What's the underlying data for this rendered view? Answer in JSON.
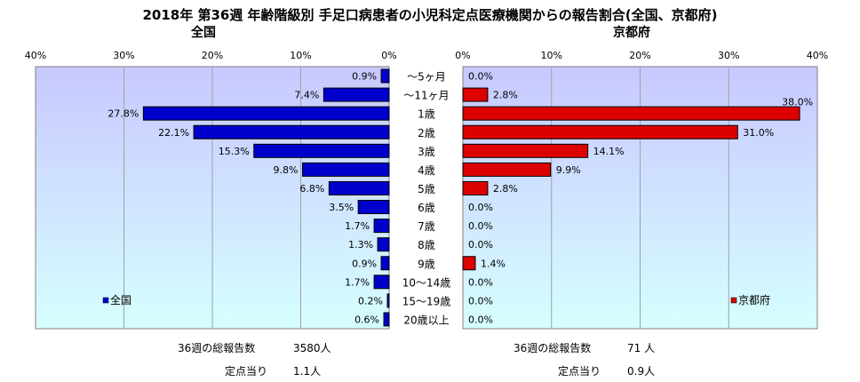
{
  "title": "2018年 第36週 年齢階級別 手足口病患者の小児科定点医療機関からの報告割合(全国、京都府)",
  "chart_data": [
    {
      "type": "bar",
      "title": "全国",
      "orientation": "horizontal-reversed",
      "categories": [
        "〜5ヶ月",
        "〜11ヶ月",
        "1歳",
        "2歳",
        "3歳",
        "4歳",
        "5歳",
        "6歳",
        "7歳",
        "8歳",
        "9歳",
        "10〜14歳",
        "15〜19歳",
        "20歳以上"
      ],
      "series": [
        {
          "name": "全国",
          "values": [
            0.9,
            7.4,
            27.8,
            22.1,
            15.3,
            9.8,
            6.8,
            3.5,
            1.7,
            1.3,
            0.9,
            1.7,
            0.2,
            0.6
          ],
          "color": "#0000cc"
        }
      ],
      "data_labels": [
        "0.9%",
        "7.4%",
        "27.8%",
        "22.1%",
        "15.3%",
        "9.8%",
        "6.8%",
        "3.5%",
        "1.7%",
        "1.3%",
        "0.9%",
        "1.7%",
        "0.2%",
        "0.6%"
      ],
      "xlim": [
        0,
        40
      ],
      "tick_labels": [
        "40%",
        "30%",
        "20%",
        "10%",
        "0%"
      ],
      "legend": "bottom-left",
      "background": "gradient light blue to light cyan",
      "grid": true
    },
    {
      "type": "bar",
      "title": "京都府",
      "orientation": "horizontal",
      "categories": [
        "〜5ヶ月",
        "〜11ヶ月",
        "1歳",
        "2歳",
        "3歳",
        "4歳",
        "5歳",
        "6歳",
        "7歳",
        "8歳",
        "9歳",
        "10〜14歳",
        "15〜19歳",
        "20歳以上"
      ],
      "series": [
        {
          "name": "京都府",
          "values": [
            0.0,
            2.8,
            38.0,
            31.0,
            14.1,
            9.9,
            2.8,
            0.0,
            0.0,
            0.0,
            1.4,
            0.0,
            0.0,
            0.0
          ],
          "color": "#dd0000"
        }
      ],
      "data_labels": [
        "0.0%",
        "2.8%",
        "38.0%",
        "31.0%",
        "14.1%",
        "9.9%",
        "2.8%",
        "0.0%",
        "0.0%",
        "0.0%",
        "1.4%",
        "0.0%",
        "0.0%",
        "0.0%"
      ],
      "xlim": [
        0,
        40
      ],
      "tick_labels": [
        "0%",
        "10%",
        "20%",
        "30%",
        "40%"
      ],
      "legend": "bottom-right",
      "background": "gradient light blue to light cyan",
      "grid": true
    }
  ],
  "stats": {
    "national": {
      "total_label": "36週の総報告数",
      "total_value": "3580人",
      "per_label": "定点当り",
      "per_value": "1.1人"
    },
    "kyoto": {
      "total_label": "36週の総報告数",
      "total_value": "71 人",
      "per_label": "定点当り",
      "per_value": "0.9人"
    }
  }
}
